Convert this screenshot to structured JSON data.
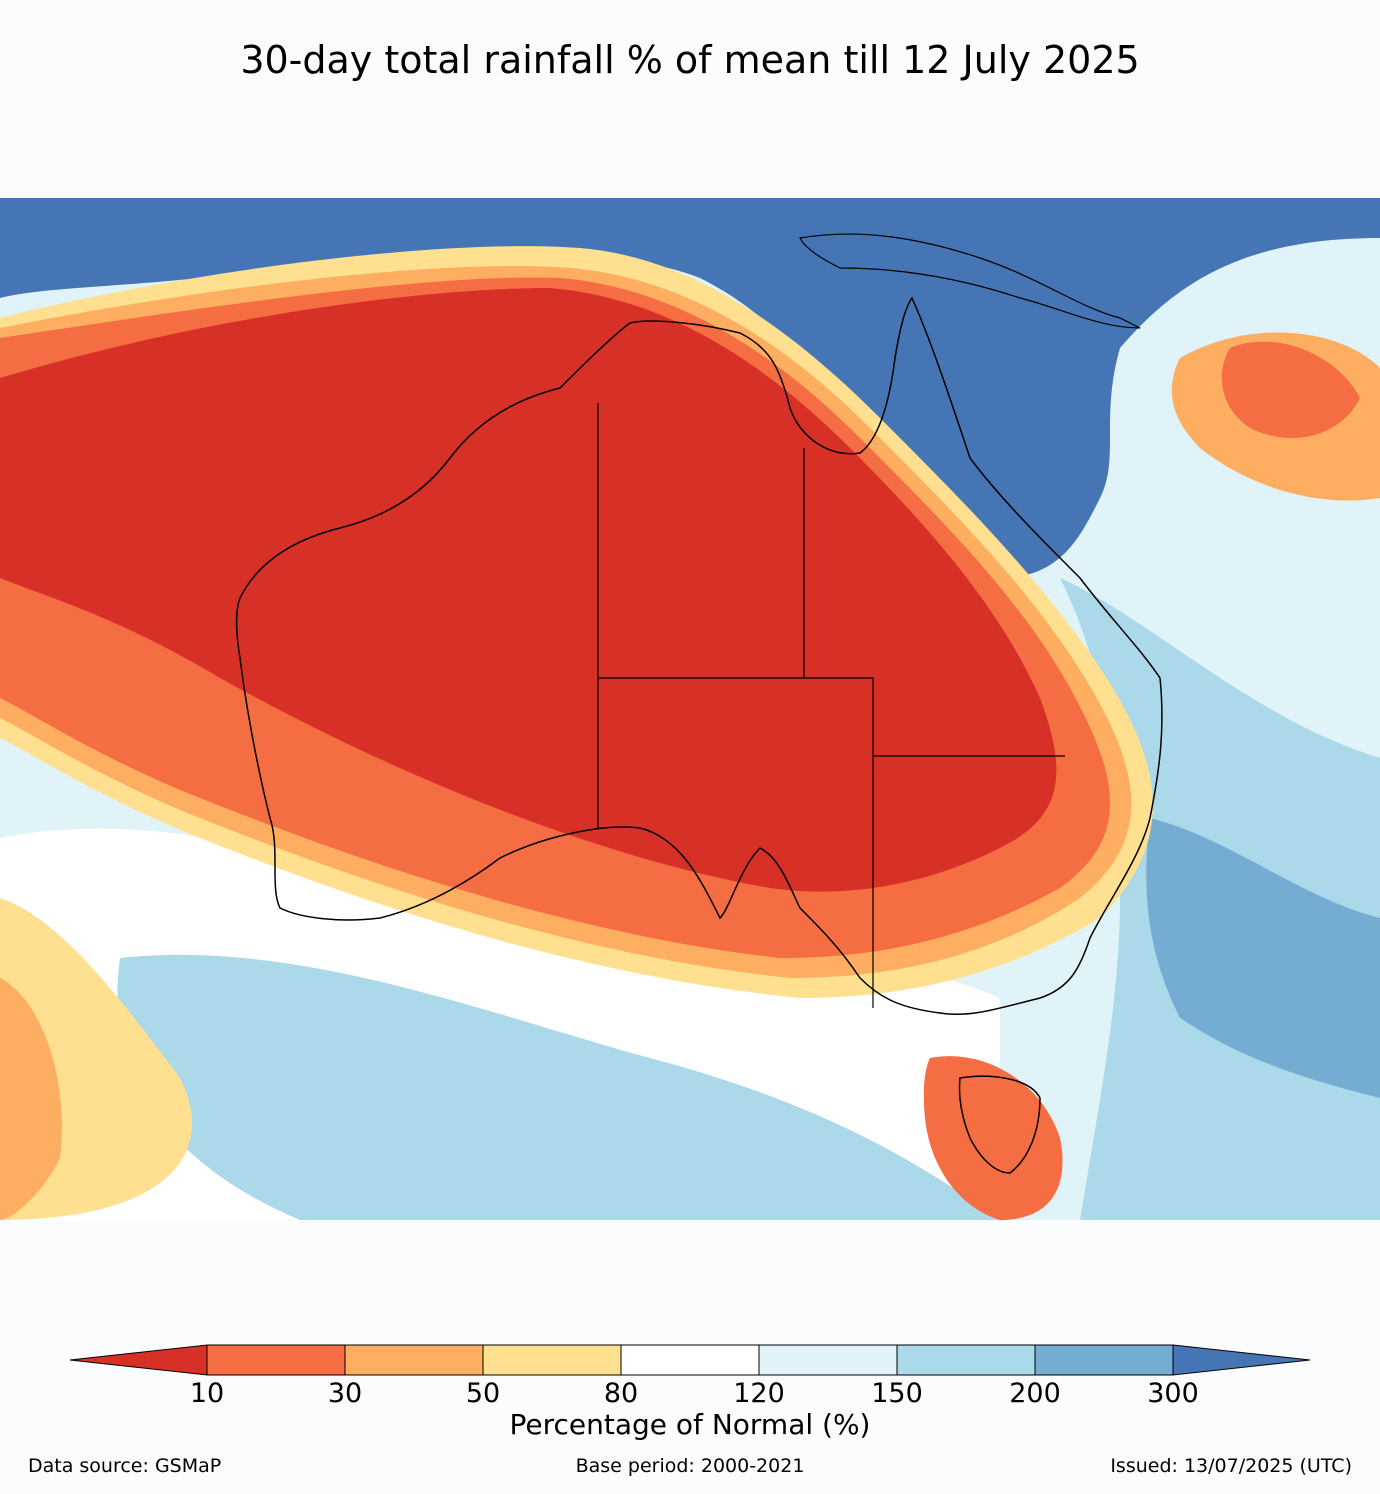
{
  "title": "30-day total rainfall % of mean till 12 July 2025",
  "colorbar": {
    "label": "Percentage of Normal (%)",
    "ticks": [
      "10",
      "30",
      "50",
      "80",
      "120",
      "150",
      "200",
      "300"
    ],
    "colors": [
      "#d73027",
      "#f46d43",
      "#fdae61",
      "#fee090",
      "#ffffff",
      "#e0f3f8",
      "#abd9e9",
      "#74add1",
      "#4575b4"
    ]
  },
  "footer": {
    "source": "Data source: GSMaP",
    "base_period": "Base period: 2000-2021",
    "issued": "Issued: 13/07/2025 (UTC)"
  }
}
